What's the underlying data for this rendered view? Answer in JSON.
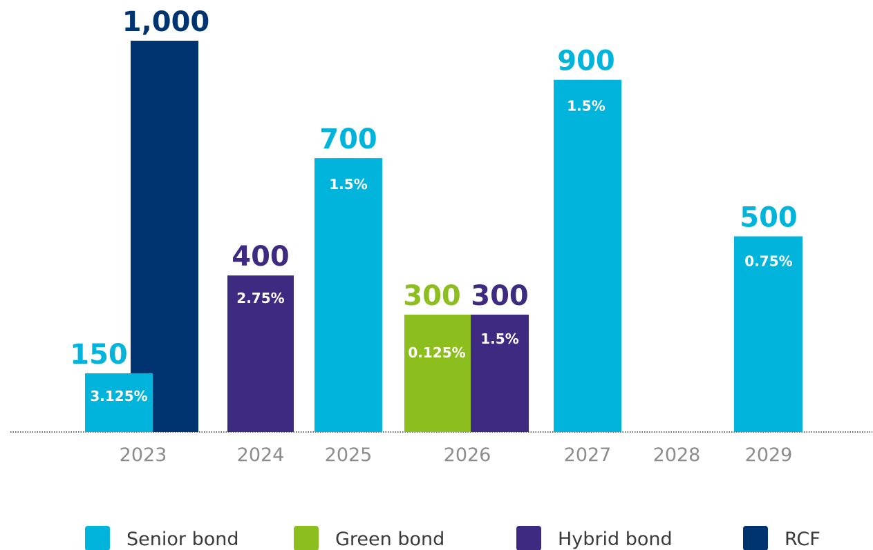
{
  "colors": {
    "Senior bond": "#00B4DC",
    "Green bond": "#8CBE1E",
    "Hybrid bond": "#3F2A82",
    "RCF": "#003470"
  },
  "chart_data": {
    "type": "bar",
    "title": "",
    "xlabel": "",
    "ylabel": "",
    "ylim": [
      0,
      1000
    ],
    "grid": false,
    "legend": "bottom",
    "categories": [
      "2023",
      "2024",
      "2025",
      "2026",
      "2027",
      "2028",
      "2029"
    ],
    "bars": [
      {
        "year": "2023",
        "series": "Senior bond",
        "value": 150,
        "value_label": "150",
        "rate": "3.125%"
      },
      {
        "year": "2023",
        "series": "RCF",
        "value": 1000,
        "value_label": "1,000",
        "rate": ""
      },
      {
        "year": "2024",
        "series": "Hybrid bond",
        "value": 400,
        "value_label": "400",
        "rate": "2.75%"
      },
      {
        "year": "2025",
        "series": "Senior bond",
        "value": 700,
        "value_label": "700",
        "rate": "1.5%"
      },
      {
        "year": "2026",
        "series": "Green bond",
        "value": 300,
        "value_label": "300",
        "rate": "0.125%"
      },
      {
        "year": "2026",
        "series": "Hybrid bond",
        "value": 300,
        "value_label": "300",
        "rate": "1.5%"
      },
      {
        "year": "2027",
        "series": "Senior bond",
        "value": 900,
        "value_label": "900",
        "rate": "1.5%"
      },
      {
        "year": "2029",
        "series": "Senior bond",
        "value": 500,
        "value_label": "500",
        "rate": "0.75%"
      }
    ],
    "legend_entries": [
      "Senior bond",
      "Green bond",
      "Hybrid bond",
      "RCF"
    ]
  }
}
